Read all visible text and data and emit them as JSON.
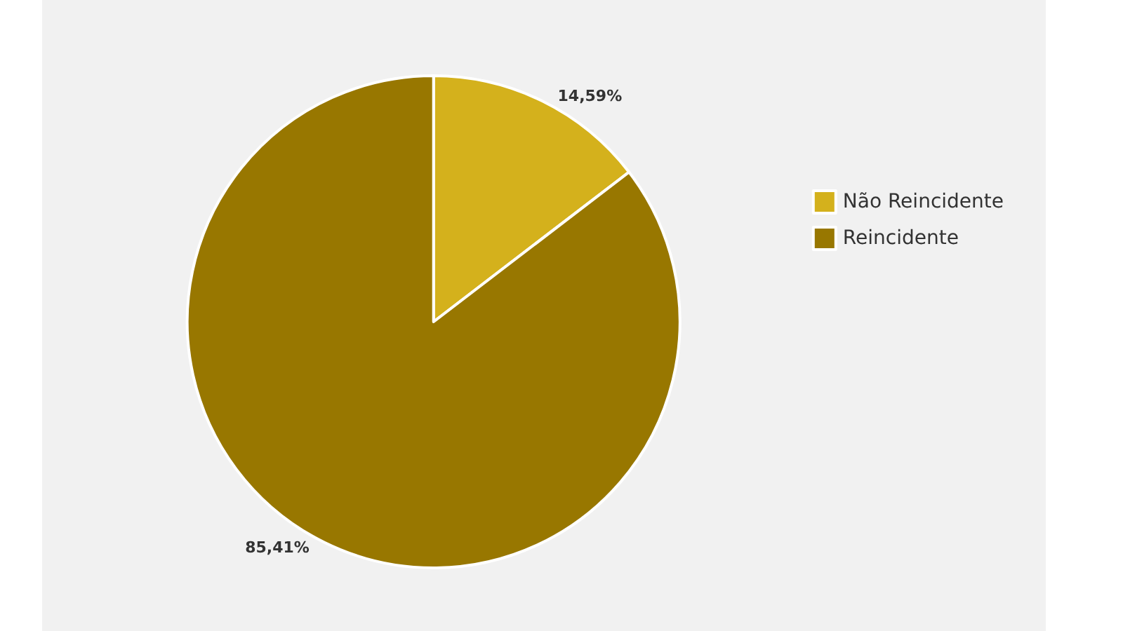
{
  "chart_data": {
    "type": "pie",
    "categories": [
      "Não Reincidente",
      "Reincidente"
    ],
    "values": [
      14.59,
      85.41
    ],
    "colors": [
      "#d4b11c",
      "#987700"
    ],
    "value_labels": [
      "14,59%",
      "85,41%"
    ],
    "legend": "right"
  }
}
